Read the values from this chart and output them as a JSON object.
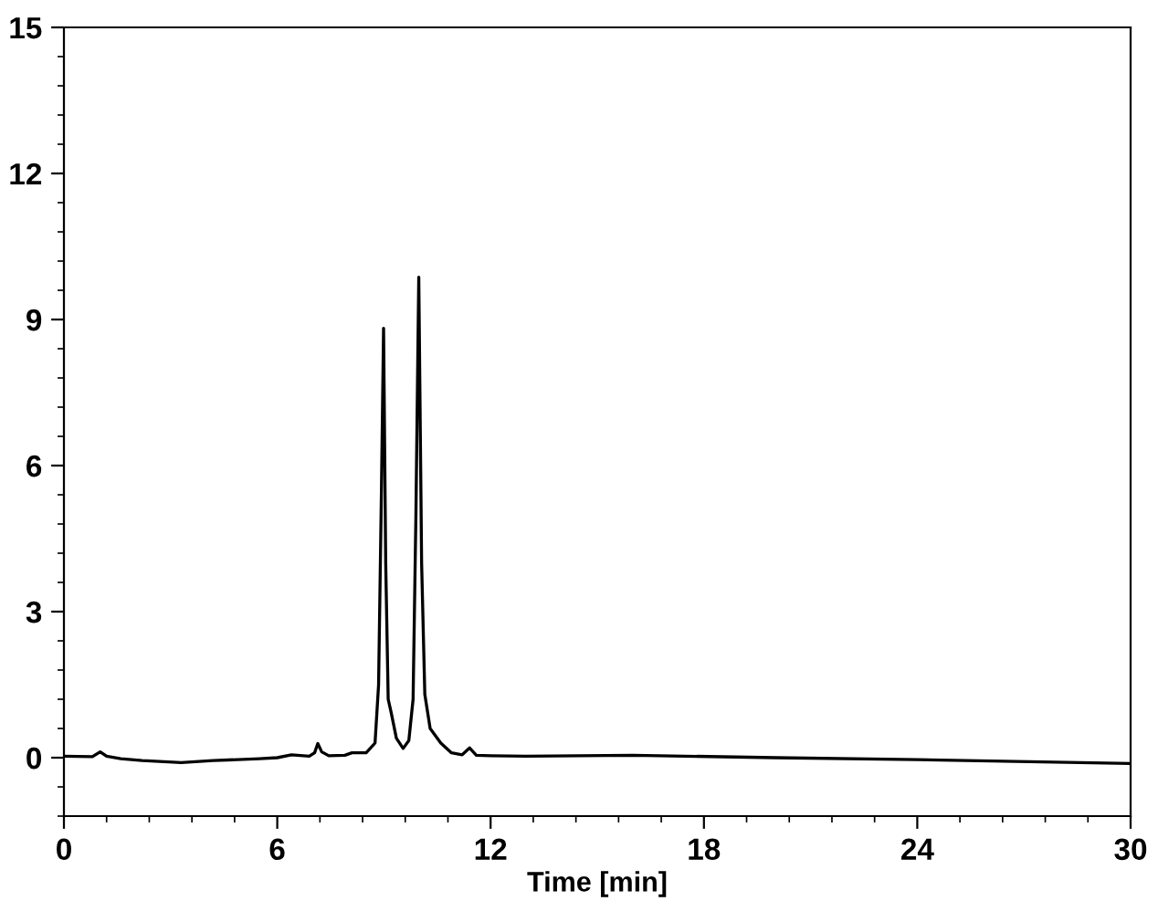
{
  "chart_data": {
    "type": "line",
    "xlabel": "Time [min]",
    "series": [
      {
        "color": "#000000",
        "x": [
          0,
          0.8,
          1.02,
          1.2,
          1.6,
          2.2,
          3.3,
          4.2,
          5.5,
          6.0,
          6.4,
          6.9,
          7.05,
          7.14,
          7.25,
          7.45,
          7.9,
          8.1,
          8.5,
          8.75,
          8.85,
          8.93,
          8.99,
          9.05,
          9.12,
          9.2,
          9.35,
          9.54,
          9.7,
          9.82,
          9.9,
          9.98,
          10.06,
          10.15,
          10.3,
          10.6,
          10.9,
          11.2,
          11.41,
          11.6,
          12,
          13,
          16,
          20,
          24,
          30
        ],
        "values": [
          0.03,
          0.02,
          0.12,
          0.03,
          -0.02,
          -0.06,
          -0.1,
          -0.06,
          -0.02,
          0.0,
          0.06,
          0.03,
          0.1,
          0.29,
          0.12,
          0.04,
          0.05,
          0.1,
          0.1,
          0.3,
          1.5,
          5.5,
          8.82,
          4.0,
          1.2,
          0.94,
          0.4,
          0.19,
          0.35,
          1.2,
          5.0,
          9.87,
          4.0,
          1.3,
          0.6,
          0.3,
          0.1,
          0.06,
          0.2,
          0.05,
          0.04,
          0.03,
          0.05,
          0.0,
          -0.04,
          -0.12
        ]
      }
    ],
    "xlim": [
      0,
      30
    ],
    "xticks": [
      0,
      6,
      12,
      18,
      24,
      30
    ],
    "ylim": [
      -1.2,
      15
    ],
    "yticks": [
      0,
      3,
      6,
      9,
      12,
      15
    ],
    "grid": false,
    "legend": false,
    "marker": "none",
    "line_style": "solid"
  }
}
